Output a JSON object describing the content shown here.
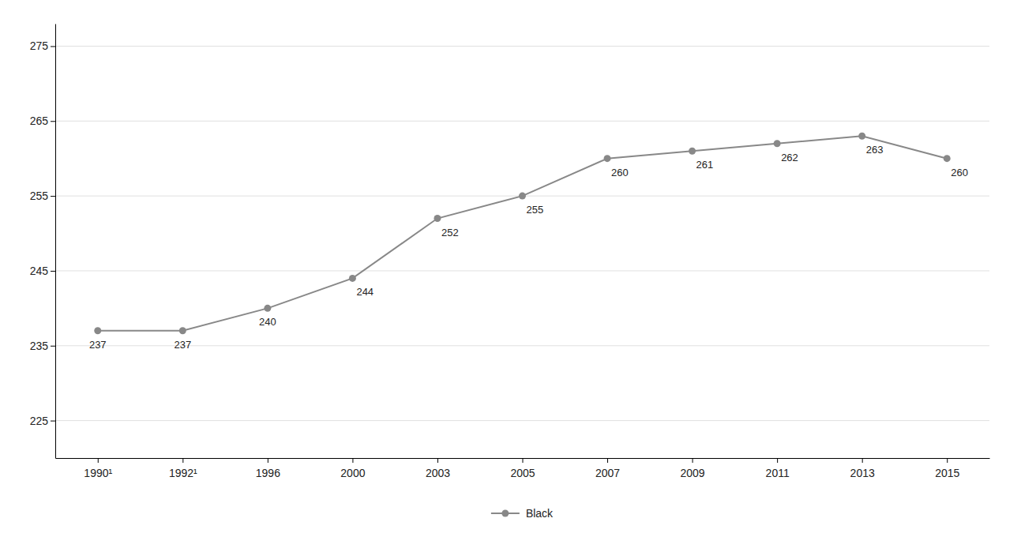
{
  "chart_data": {
    "type": "line",
    "categories": [
      "1990¹",
      "1992¹",
      "1996",
      "2000",
      "2003",
      "2005",
      "2007",
      "2009",
      "2011",
      "2013",
      "2015"
    ],
    "series": [
      {
        "name": "Black",
        "color": "#888888",
        "marker": "circle",
        "values": [
          237,
          237,
          240,
          244,
          252,
          255,
          260,
          261,
          262,
          263,
          260
        ]
      }
    ],
    "ylim": [
      220,
      278
    ],
    "yticks": [
      225,
      235,
      245,
      255,
      265,
      275
    ],
    "grid": true,
    "legend": "bottom",
    "data_labels": true
  }
}
